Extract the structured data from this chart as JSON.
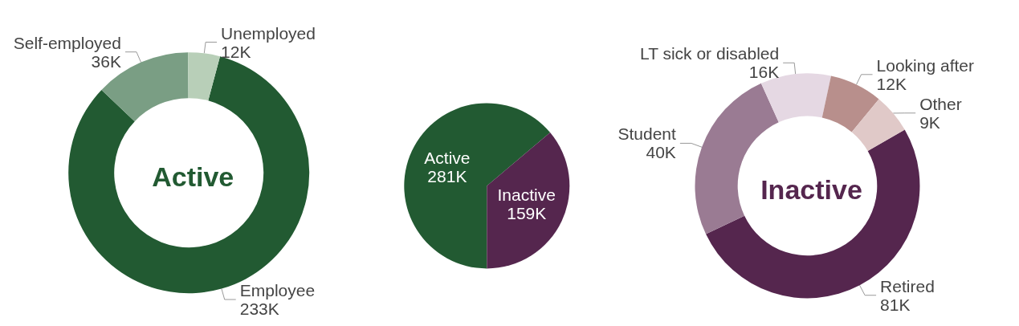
{
  "chart_data": [
    {
      "type": "donut",
      "title": "Active",
      "categories": [
        "Employee",
        "Self-employed",
        "Unemployed"
      ],
      "values": [
        233,
        36,
        12
      ],
      "value_labels": [
        "233K",
        "36K",
        "12K"
      ],
      "colors": [
        "#225a32",
        "#7a9e84",
        "#b8cfb8"
      ]
    },
    {
      "type": "pie",
      "categories": [
        "Active",
        "Inactive"
      ],
      "values": [
        281,
        159
      ],
      "value_labels": [
        "281K",
        "159K"
      ],
      "colors": [
        "#225a32",
        "#55264e"
      ]
    },
    {
      "type": "donut",
      "title": "Inactive",
      "categories": [
        "Retired",
        "Student",
        "LT sick or disabled",
        "Looking after",
        "Other"
      ],
      "values": [
        81,
        40,
        16,
        12,
        9
      ],
      "value_labels": [
        "81K",
        "40K",
        "16K",
        "12K",
        "9K"
      ],
      "colors": [
        "#55264e",
        "#9a7b93",
        "#e5d8e3",
        "#b88f8c",
        "#e0c9c8"
      ]
    }
  ]
}
